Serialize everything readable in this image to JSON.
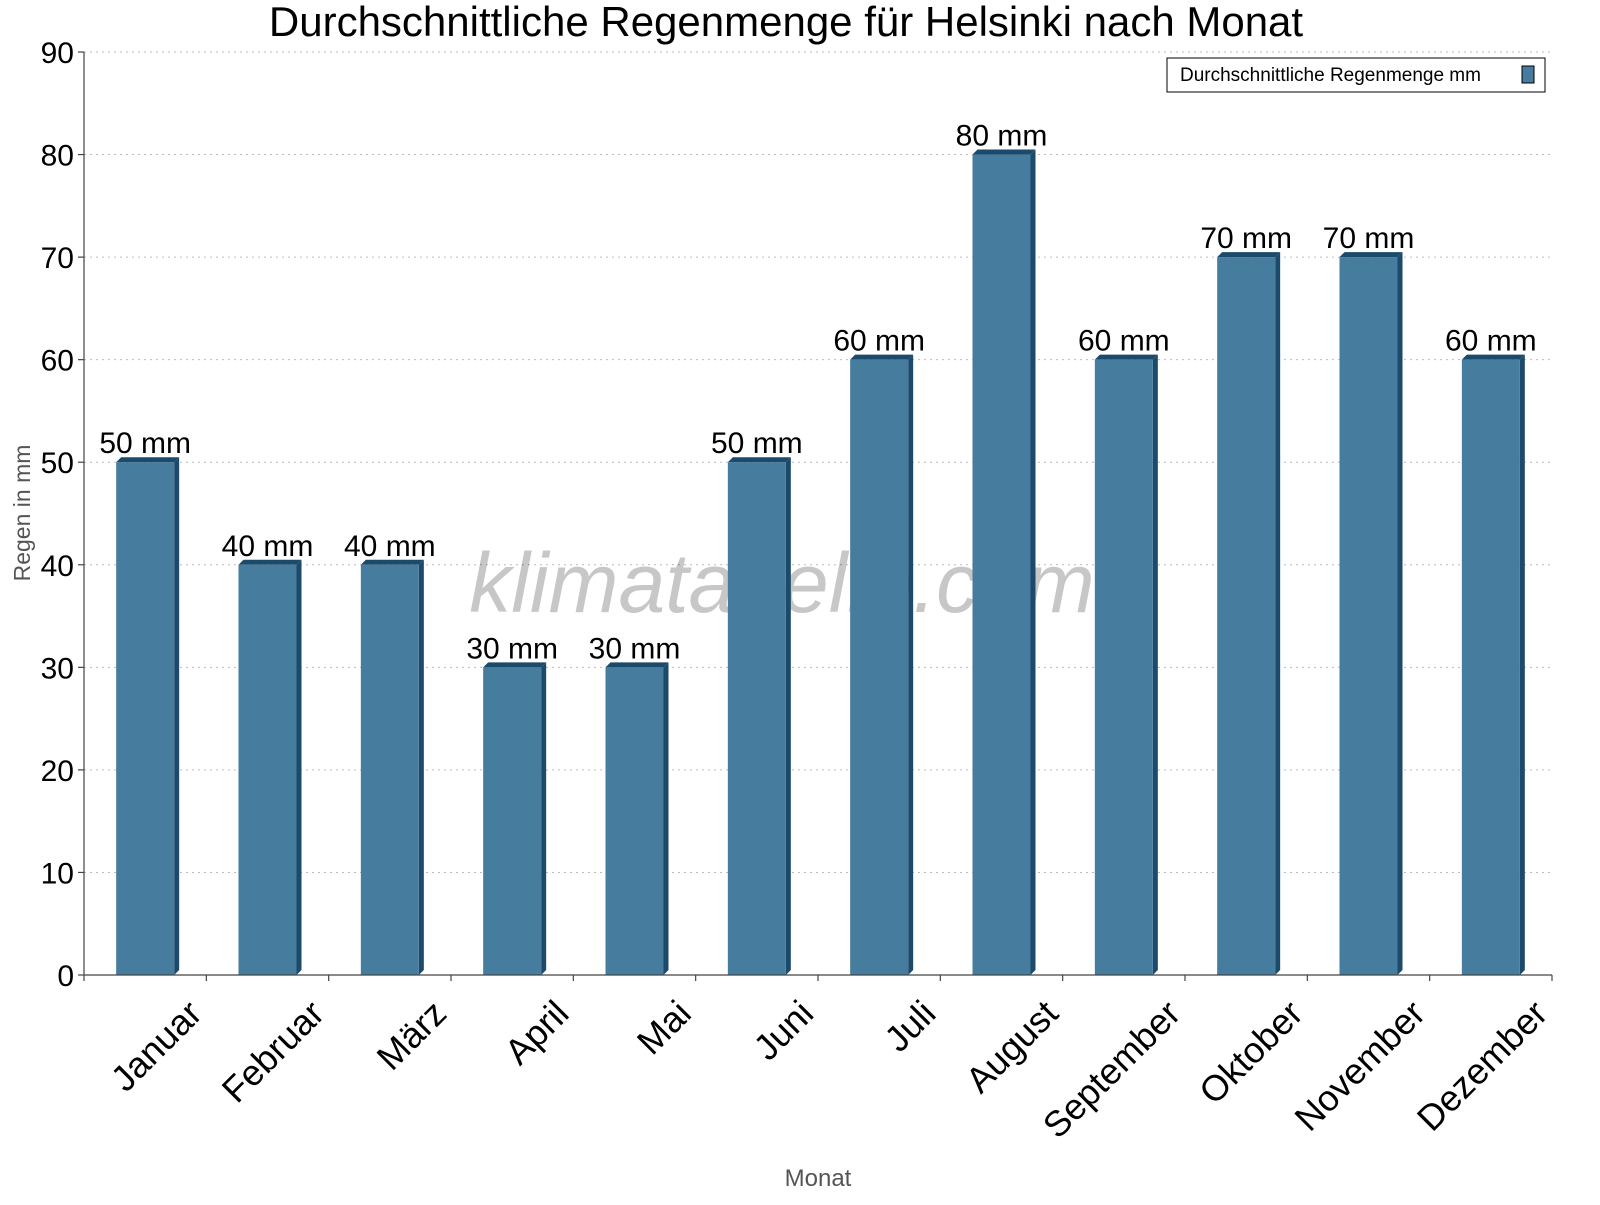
{
  "chart_data": {
    "type": "bar",
    "title": "Durchschnittliche Regenmenge für Helsinki nach Monat",
    "xlabel": "Monat",
    "ylabel": "Regen in mm",
    "ylim": [
      0,
      90
    ],
    "yticks": [
      0,
      10,
      20,
      30,
      40,
      50,
      60,
      70,
      80,
      90
    ],
    "grid": true,
    "legend_position": "top-right",
    "watermark": "klimatabelle.com",
    "categories": [
      "Januar",
      "Februar",
      "März",
      "April",
      "Mai",
      "Juni",
      "Juli",
      "August",
      "September",
      "Oktober",
      "November",
      "Dezember"
    ],
    "series": [
      {
        "name": "Durchschnittliche Regenmenge mm",
        "color": "#467c9e",
        "side_color": "#1c4a6b",
        "values": [
          50,
          40,
          40,
          30,
          30,
          50,
          60,
          80,
          60,
          70,
          70,
          60
        ],
        "data_labels": [
          "50 mm",
          "40 mm",
          "40 mm",
          "30 mm",
          "30 mm",
          "50 mm",
          "60 mm",
          "80 mm",
          "60 mm",
          "70 mm",
          "70 mm",
          "60 mm"
        ]
      }
    ]
  }
}
